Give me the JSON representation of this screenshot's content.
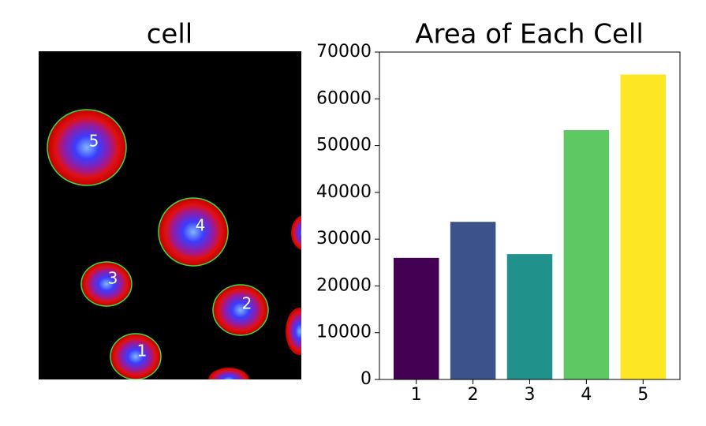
{
  "image_panel": {
    "title": "cell",
    "labels": [
      "1",
      "2",
      "3",
      "4",
      "5"
    ]
  },
  "chart_data": {
    "type": "bar",
    "title": "Area of Each Cell",
    "categories": [
      "1",
      "2",
      "3",
      "4",
      "5"
    ],
    "values": [
      26000,
      33700,
      26800,
      53300,
      65200
    ],
    "colors": [
      "#440154",
      "#3b528b",
      "#21918c",
      "#5ec962",
      "#fde725"
    ],
    "ylim": [
      0,
      70000
    ],
    "yticks": [
      0,
      10000,
      20000,
      30000,
      40000,
      50000,
      60000,
      70000
    ],
    "grid": false
  }
}
